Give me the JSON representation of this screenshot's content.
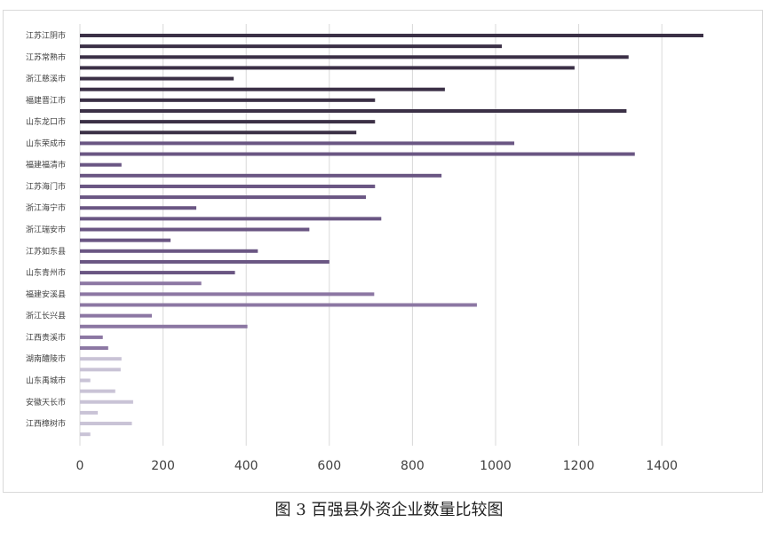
{
  "caption": "图 3 百强县外资企业数量比较图",
  "chart_data": {
    "type": "bar",
    "orientation": "horizontal",
    "title": "",
    "xlabel": "",
    "ylabel": "",
    "xlim": [
      0,
      1500
    ],
    "xticks": [
      0,
      200,
      400,
      600,
      800,
      1000,
      1200,
      1400
    ],
    "grid": "vertical",
    "legend": "none",
    "color_groups": [
      {
        "color": "#3b3046",
        "count": 10
      },
      {
        "color": "#6a5683",
        "count": 13
      },
      {
        "color": "#8c77a3",
        "count": 7
      },
      {
        "color": "#c9c3d6",
        "count": 8
      }
    ],
    "categories": [
      "江苏江阴市",
      "",
      "江苏常熟市",
      "",
      "浙江慈溪市",
      "",
      "福建晋江市",
      "",
      "山东龙口市",
      "",
      "山东荣成市",
      "",
      "福建福清市",
      "",
      "江苏海门市",
      "",
      "浙江海宁市",
      "",
      "浙江瑞安市",
      "",
      "江苏如东县",
      "",
      "山东青州市",
      "",
      "福建安溪县",
      "",
      "浙江长兴县",
      "",
      "江西贵溪市",
      "",
      "湖南醴陵市",
      "",
      "山东禹城市",
      "",
      "安徽天长市",
      "",
      "江西樟树市",
      ""
    ],
    "values": [
      1500,
      1015,
      1320,
      1190,
      370,
      878,
      710,
      1315,
      710,
      665,
      1045,
      1335,
      100,
      870,
      710,
      688,
      280,
      725,
      552,
      218,
      428,
      600,
      373,
      292,
      708,
      955,
      173,
      403,
      55,
      68,
      100,
      98,
      25,
      85,
      128,
      43,
      125,
      25
    ],
    "category_labels_shown": [
      "江苏江阴市",
      "江苏常熟市",
      "浙江慈溪市",
      "福建晋江市",
      "山东龙口市",
      "山东荣成市",
      "福建福清市",
      "江苏海门市",
      "浙江海宁市",
      "浙江瑞安市",
      "江苏如东县",
      "山东青州市",
      "福建安溪县",
      "浙江长兴县",
      "江西贵溪市",
      "湖南醴陵市",
      "山东禹城市",
      "安徽天长市",
      "江西樟树市"
    ]
  }
}
